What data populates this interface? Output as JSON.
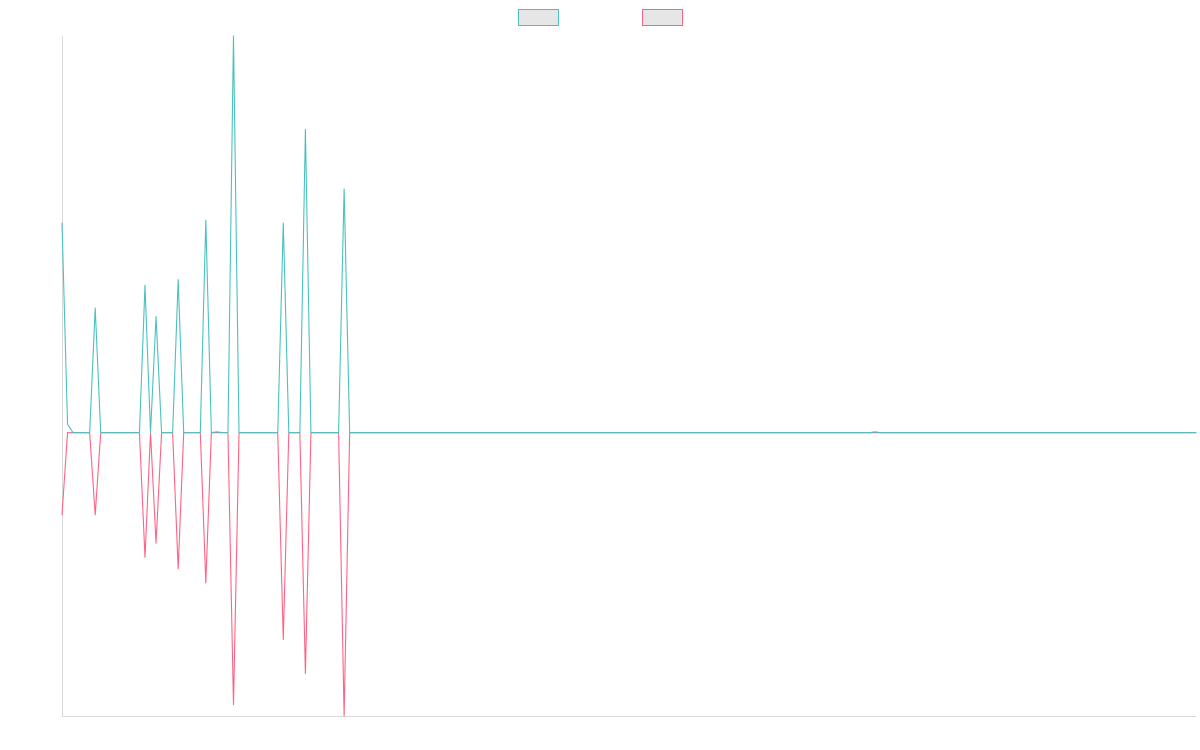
{
  "chart_data": {
    "type": "line",
    "title": "",
    "xlabel": "",
    "ylabel": "",
    "legend_position": "top-center",
    "grid": false,
    "x_count": 206,
    "ylim": [
      -1.0,
      1.4
    ],
    "series": [
      {
        "name": "",
        "color": "#4bc0c0",
        "fill": "#e6e6e6",
        "points": [
          [
            0,
            0.74
          ],
          [
            1,
            0.03
          ],
          [
            2,
            0.0
          ],
          [
            5,
            0.0
          ],
          [
            6,
            0.44
          ],
          [
            7,
            0.0
          ],
          [
            14,
            0.0
          ],
          [
            15,
            0.52
          ],
          [
            16,
            0.0
          ],
          [
            17,
            0.41
          ],
          [
            18,
            0.0
          ],
          [
            20,
            0.0
          ],
          [
            21,
            0.54
          ],
          [
            22,
            0.0
          ],
          [
            25,
            0.0
          ],
          [
            26,
            0.75
          ],
          [
            27,
            0.0
          ],
          [
            28,
            0.003
          ],
          [
            29,
            0.0
          ],
          [
            30,
            0.0
          ],
          [
            31,
            1.4
          ],
          [
            32,
            0.0
          ],
          [
            39,
            0.0
          ],
          [
            40,
            0.74
          ],
          [
            41,
            0.0
          ],
          [
            43,
            0.0
          ],
          [
            44,
            1.07
          ],
          [
            45,
            0.0
          ],
          [
            50,
            0.0
          ],
          [
            51,
            0.86
          ],
          [
            52,
            0.0
          ],
          [
            146,
            0.0
          ],
          [
            147,
            0.003
          ],
          [
            148,
            0.0
          ],
          [
            205,
            0.0
          ]
        ]
      },
      {
        "name": "",
        "color": "#ff6384",
        "fill": "#e6e6e6",
        "points": [
          [
            0,
            -0.29
          ],
          [
            1,
            0.0
          ],
          [
            5,
            0.0
          ],
          [
            6,
            -0.29
          ],
          [
            7,
            0.0
          ],
          [
            14,
            0.0
          ],
          [
            15,
            -0.44
          ],
          [
            16,
            0.0
          ],
          [
            17,
            -0.39
          ],
          [
            18,
            0.0
          ],
          [
            20,
            0.0
          ],
          [
            21,
            -0.48
          ],
          [
            22,
            0.0
          ],
          [
            25,
            0.0
          ],
          [
            26,
            -0.53
          ],
          [
            27,
            0.0
          ],
          [
            30,
            0.0
          ],
          [
            31,
            -0.96
          ],
          [
            32,
            0.0
          ],
          [
            39,
            0.0
          ],
          [
            40,
            -0.73
          ],
          [
            41,
            0.0
          ],
          [
            43,
            0.0
          ],
          [
            44,
            -0.85
          ],
          [
            45,
            0.0
          ],
          [
            50,
            0.0
          ],
          [
            51,
            -1.0
          ],
          [
            52,
            0.0
          ],
          [
            205,
            0.0
          ]
        ]
      }
    ]
  }
}
